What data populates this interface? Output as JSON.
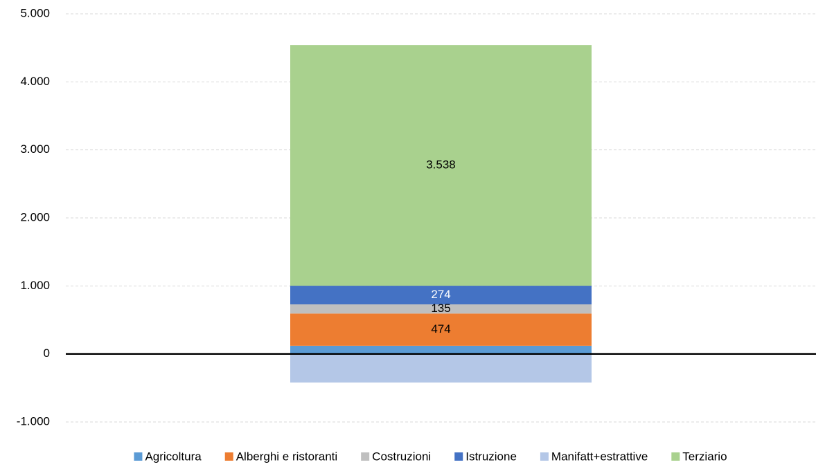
{
  "chart_data": {
    "type": "stacked_bar",
    "categories": [
      null
    ],
    "series": [
      {
        "name": "Agricoltura",
        "color": "#5b9bd5",
        "values": [
          120
        ]
      },
      {
        "name": "Alberghi e ristoranti",
        "color": "#ed7d31",
        "values": [
          474
        ],
        "value_labels": [
          "474"
        ],
        "label_color": "#000000"
      },
      {
        "name": "Costruzioni",
        "color": "#bfbfbf",
        "values": [
          135
        ],
        "value_labels": [
          "135"
        ],
        "label_color": "#000000"
      },
      {
        "name": "Istruzione",
        "color": "#4472c4",
        "values": [
          274
        ],
        "value_labels": [
          "274"
        ],
        "label_color": "#ffffff"
      },
      {
        "name": "Manifatt+estrattive",
        "color": "#b4c7e7",
        "values": [
          -420
        ]
      },
      {
        "name": "Terziario",
        "color": "#a9d18e",
        "values": [
          3538
        ],
        "value_labels": [
          "3.538"
        ],
        "label_color": "#000000"
      }
    ],
    "ylim": [
      -1000,
      5000
    ],
    "yticks": [
      {
        "value": -1000,
        "label": "-1.000"
      },
      0,
      {
        "value": 1000,
        "label": "1.000"
      },
      {
        "value": 2000,
        "label": "2.000"
      },
      {
        "value": 3000,
        "label": "3.000"
      },
      {
        "value": 4000,
        "label": "4.000"
      },
      {
        "value": 5000,
        "label": "5.000"
      }
    ],
    "grid": true,
    "legend": "bottom"
  }
}
